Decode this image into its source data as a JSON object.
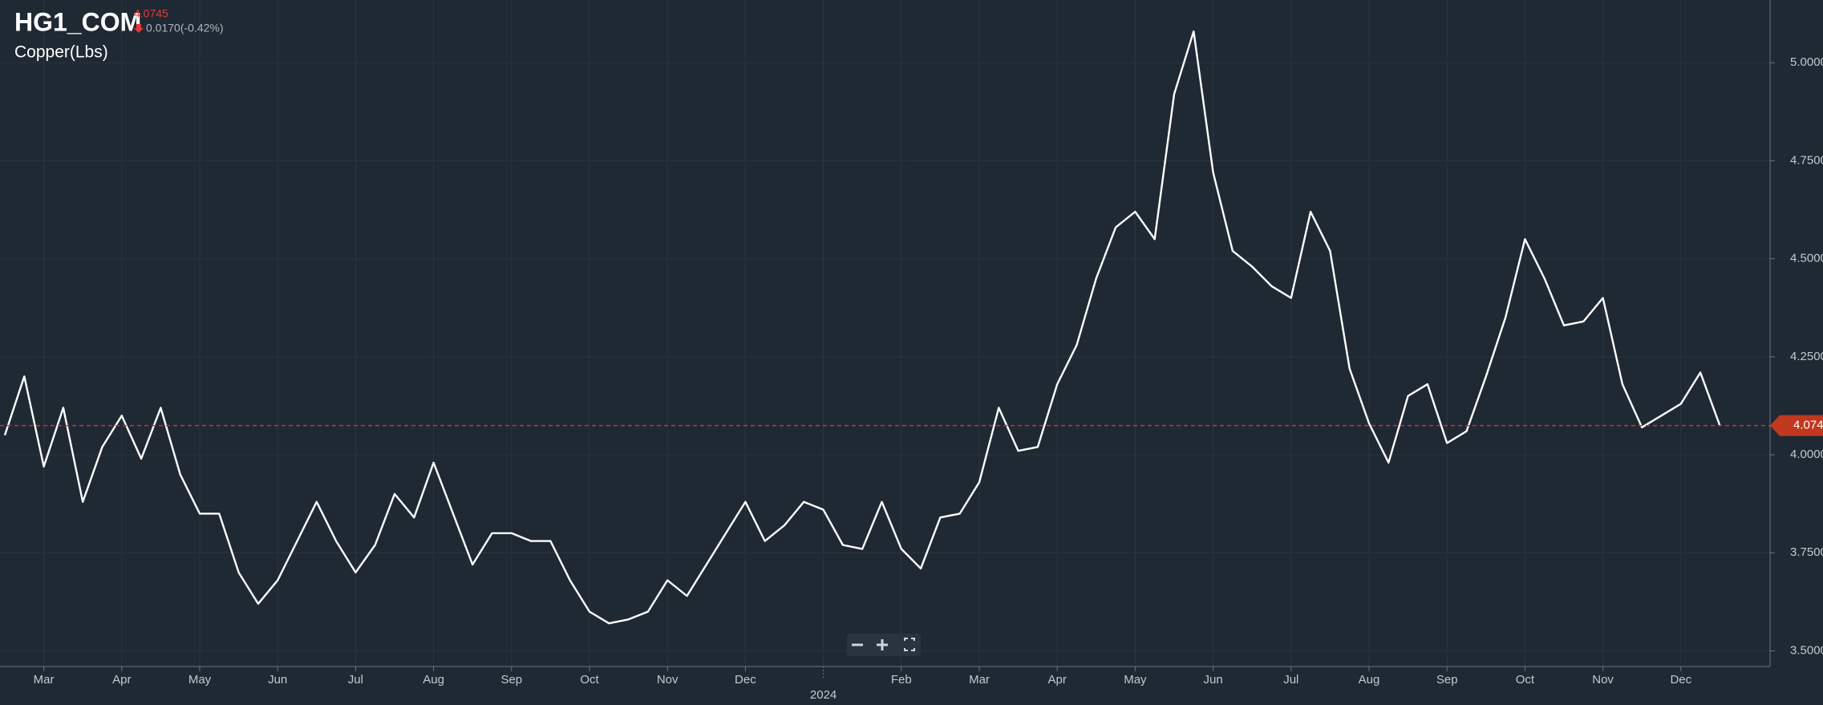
{
  "header": {
    "symbol": "HG1_COM",
    "price": 4.0745,
    "change": "0.0170(-0.42%)",
    "name": "Copper(Lbs)"
  },
  "chart_data": {
    "type": "line",
    "color": "#ffffff",
    "categories": [
      null,
      null,
      "Mar",
      null,
      null,
      null,
      "Apr",
      null,
      null,
      null,
      "May",
      null,
      null,
      null,
      "Jun",
      null,
      null,
      null,
      "Jul",
      null,
      null,
      null,
      "Aug",
      null,
      null,
      null,
      "Sep",
      null,
      null,
      null,
      "Oct",
      null,
      null,
      null,
      "Nov",
      null,
      null,
      null,
      "Dec",
      null,
      null,
      null,
      "2024",
      null,
      null,
      null,
      "Feb",
      null,
      null,
      null,
      "Mar",
      null,
      null,
      null,
      "Apr",
      null,
      null,
      null,
      "May",
      null,
      null,
      null,
      "Jun",
      null,
      null,
      null,
      "Jul",
      null,
      null,
      null,
      "Aug",
      null,
      null,
      null,
      "Sep",
      null,
      null,
      null,
      "Oct",
      null,
      null,
      null,
      "Nov",
      null,
      null,
      null,
      "Dec",
      null,
      null
    ],
    "values": [
      4.05,
      4.2,
      3.97,
      4.12,
      3.88,
      4.02,
      4.1,
      3.99,
      4.12,
      3.95,
      3.85,
      3.85,
      3.7,
      3.62,
      3.68,
      3.78,
      3.88,
      3.78,
      3.7,
      3.77,
      3.9,
      3.84,
      3.98,
      3.85,
      3.72,
      3.8,
      3.8,
      3.78,
      3.78,
      3.68,
      3.6,
      3.57,
      3.58,
      3.6,
      3.68,
      3.64,
      3.72,
      3.8,
      3.88,
      3.78,
      3.82,
      3.88,
      3.86,
      3.77,
      3.76,
      3.88,
      3.76,
      3.71,
      3.84,
      3.85,
      3.93,
      4.12,
      4.01,
      4.02,
      4.18,
      4.28,
      4.45,
      4.58,
      4.62,
      4.55,
      4.92,
      5.08,
      4.72,
      4.52,
      4.48,
      4.43,
      4.4,
      4.62,
      4.52,
      4.22,
      4.08,
      3.98,
      4.15,
      4.18,
      4.03,
      4.06,
      4.2,
      4.35,
      4.55,
      4.45,
      4.33,
      4.34,
      4.4,
      4.18,
      4.07,
      4.1,
      4.13,
      4.21,
      4.0745
    ],
    "ylim": [
      3.46,
      5.16
    ],
    "yticks": [
      {
        "value": 3.5,
        "label": "3.5000"
      },
      {
        "value": 3.75,
        "label": "3.7500"
      },
      {
        "value": 4,
        "label": "4.0000"
      },
      {
        "value": 4.25,
        "label": "4.2500"
      },
      {
        "value": 4.5,
        "label": "4.5000"
      },
      {
        "value": 4.75,
        "label": "4.7500"
      },
      {
        "value": 5,
        "label": "5.0000"
      }
    ],
    "grid": true
  }
}
